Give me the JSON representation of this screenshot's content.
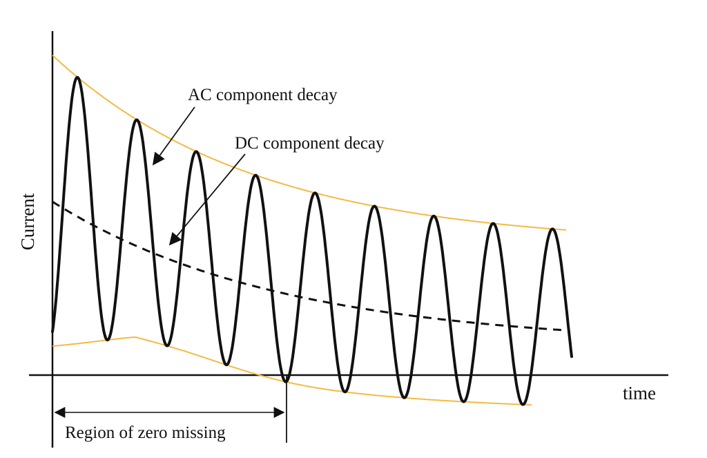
{
  "labels": {
    "ac_decay": "AC component decay",
    "dc_decay": "DC component decay",
    "y_axis": "Current",
    "x_axis": "time",
    "region": "Region of zero missing"
  },
  "colors": {
    "envelope": "#f5b942",
    "waveform": "#111111",
    "dc_line": "#111111",
    "axis": "#111111",
    "background": "#ffffff"
  },
  "wave": {
    "cycles": 8.75
  }
}
